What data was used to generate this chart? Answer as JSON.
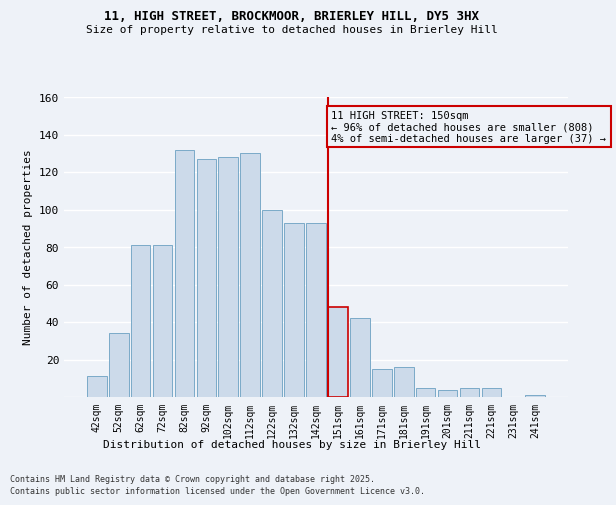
{
  "title1": "11, HIGH STREET, BROCKMOOR, BRIERLEY HILL, DY5 3HX",
  "title2": "Size of property relative to detached houses in Brierley Hill",
  "xlabel": "Distribution of detached houses by size in Brierley Hill",
  "ylabel": "Number of detached properties",
  "categories": [
    "42sqm",
    "52sqm",
    "62sqm",
    "72sqm",
    "82sqm",
    "92sqm",
    "102sqm",
    "112sqm",
    "122sqm",
    "132sqm",
    "142sqm",
    "151sqm",
    "161sqm",
    "171sqm",
    "181sqm",
    "191sqm",
    "201sqm",
    "211sqm",
    "221sqm",
    "231sqm",
    "241sqm"
  ],
  "values": [
    11,
    34,
    81,
    81,
    132,
    127,
    128,
    130,
    100,
    93,
    93,
    48,
    42,
    15,
    16,
    5,
    4,
    5,
    5,
    0,
    1
  ],
  "bar_color": "#ccdaea",
  "bar_edge_color": "#7aaac8",
  "highlight_bar_index": 11,
  "highlight_bar_edge_color": "#cc0000",
  "vline_color": "#cc0000",
  "annotation_text": "11 HIGH STREET: 150sqm\n← 96% of detached houses are smaller (808)\n4% of semi-detached houses are larger (37) →",
  "annotation_box_color": "#cc0000",
  "ylim": [
    0,
    160
  ],
  "yticks": [
    0,
    20,
    40,
    60,
    80,
    100,
    120,
    140,
    160
  ],
  "footnote1": "Contains HM Land Registry data © Crown copyright and database right 2025.",
  "footnote2": "Contains public sector information licensed under the Open Government Licence v3.0.",
  "bg_color": "#eef2f8",
  "grid_color": "#ffffff"
}
